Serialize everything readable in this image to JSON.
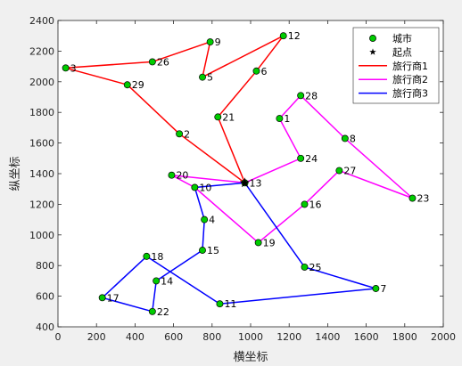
{
  "chart_data": {
    "type": "line",
    "xlabel": "横坐标",
    "ylabel": "纵坐标",
    "xlim": [
      0,
      2000
    ],
    "ylim": [
      400,
      2400
    ],
    "xticks": [
      0,
      200,
      400,
      600,
      800,
      1000,
      1200,
      1400,
      1600,
      1800,
      2000
    ],
    "yticks": [
      400,
      600,
      800,
      1000,
      1200,
      1400,
      1600,
      1800,
      2000,
      2200,
      2400
    ],
    "grid": false,
    "legend_position": "top-right",
    "legend": [
      {
        "label": "城市",
        "kind": "marker-circle",
        "color": "#00cc00"
      },
      {
        "label": "起点",
        "kind": "marker-star",
        "color": "#000000"
      },
      {
        "label": "旅行商1",
        "kind": "line",
        "color": "#ff0000"
      },
      {
        "label": "旅行商2",
        "kind": "line",
        "color": "#ff00ff"
      },
      {
        "label": "旅行商3",
        "kind": "line",
        "color": "#0000ff"
      }
    ],
    "start": {
      "x": 970,
      "y": 1340
    },
    "cities": [
      {
        "id": "1",
        "x": 1150,
        "y": 1760
      },
      {
        "id": "2",
        "x": 630,
        "y": 1660
      },
      {
        "id": "3",
        "x": 40,
        "y": 2090
      },
      {
        "id": "4",
        "x": 760,
        "y": 1100
      },
      {
        "id": "5",
        "x": 750,
        "y": 2030
      },
      {
        "id": "6",
        "x": 1030,
        "y": 2070
      },
      {
        "id": "7",
        "x": 1650,
        "y": 650
      },
      {
        "id": "8",
        "x": 1490,
        "y": 1630
      },
      {
        "id": "9",
        "x": 790,
        "y": 2260
      },
      {
        "id": "10",
        "x": 710,
        "y": 1310
      },
      {
        "id": "11",
        "x": 840,
        "y": 550
      },
      {
        "id": "12",
        "x": 1170,
        "y": 2300
      },
      {
        "id": "13",
        "x": 970,
        "y": 1340
      },
      {
        "id": "14",
        "x": 510,
        "y": 700
      },
      {
        "id": "15",
        "x": 750,
        "y": 900
      },
      {
        "id": "16",
        "x": 1280,
        "y": 1200
      },
      {
        "id": "17",
        "x": 230,
        "y": 590
      },
      {
        "id": "18",
        "x": 460,
        "y": 860
      },
      {
        "id": "19",
        "x": 1040,
        "y": 950
      },
      {
        "id": "20",
        "x": 590,
        "y": 1390
      },
      {
        "id": "21",
        "x": 830,
        "y": 1770
      },
      {
        "id": "22",
        "x": 490,
        "y": 500
      },
      {
        "id": "23",
        "x": 1840,
        "y": 1240
      },
      {
        "id": "24",
        "x": 1260,
        "y": 1500
      },
      {
        "id": "25",
        "x": 1280,
        "y": 790
      },
      {
        "id": "26",
        "x": 490,
        "y": 2130
      },
      {
        "id": "27",
        "x": 1460,
        "y": 1420
      },
      {
        "id": "28",
        "x": 1260,
        "y": 1910
      },
      {
        "id": "29",
        "x": 360,
        "y": 1980
      }
    ],
    "series": [
      {
        "name": "旅行商1",
        "color": "#ff0000",
        "route": [
          "13",
          "2",
          "29",
          "3",
          "26",
          "9",
          "5",
          "12",
          "6",
          "21",
          "13"
        ]
      },
      {
        "name": "旅行商2",
        "color": "#ff00ff",
        "route": [
          "13",
          "24",
          "1",
          "28",
          "8",
          "23",
          "27",
          "16",
          "19",
          "10",
          "20",
          "13"
        ]
      },
      {
        "name": "旅行商3",
        "color": "#0000ff",
        "route": [
          "13",
          "10",
          "4",
          "15",
          "14",
          "22",
          "17",
          "18",
          "11",
          "7",
          "25",
          "13"
        ]
      }
    ]
  }
}
